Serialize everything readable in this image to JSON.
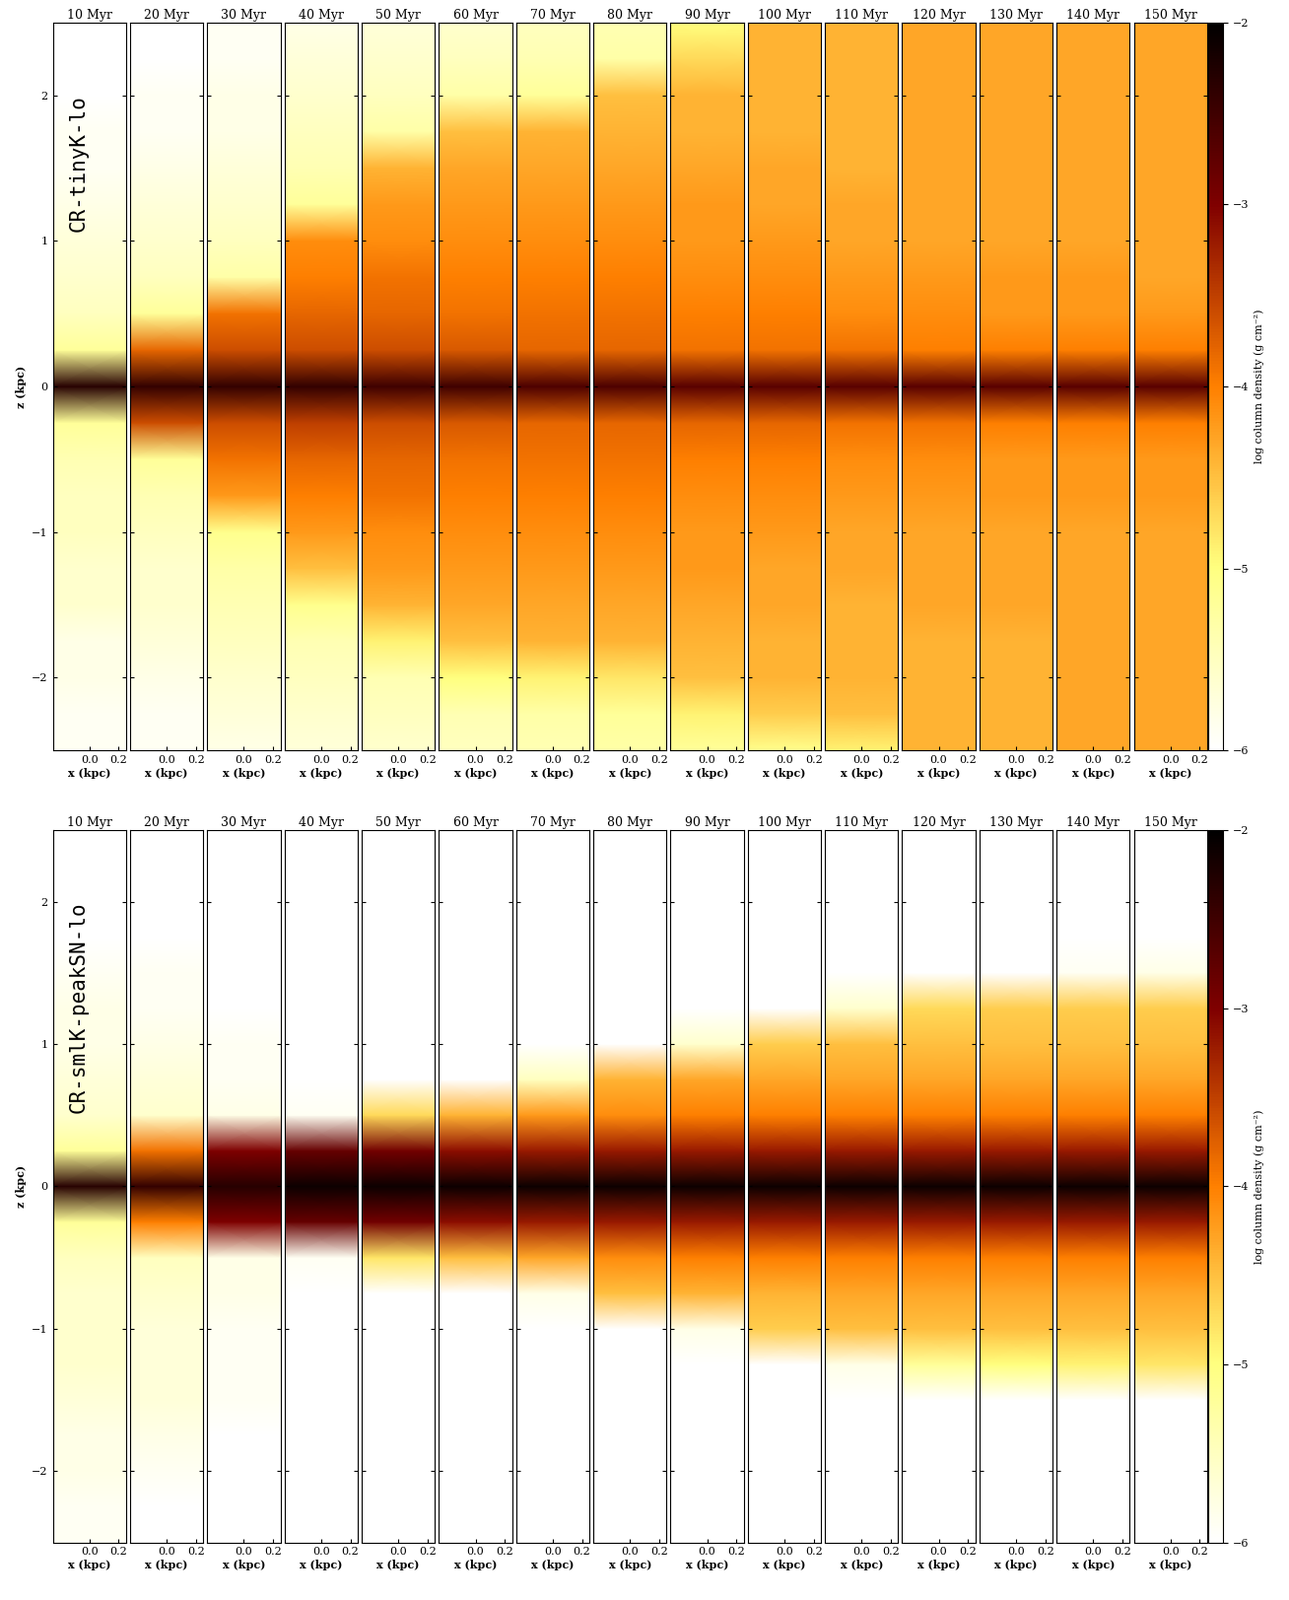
{
  "chart_data": [
    {
      "type": "heatmap",
      "title": "CR-tinyK-lo",
      "x_label": "x (kpc)",
      "y_label": "z (kpc)",
      "xlim": [
        -0.25,
        0.25
      ],
      "xticks": [
        0.0,
        0.2
      ],
      "ylim": [
        -2.5,
        2.5
      ],
      "yticks": [
        {
          "value": -2,
          "label": "−2"
        },
        {
          "value": -1,
          "label": "−1"
        },
        0,
        1,
        2
      ],
      "z": [
        -2.5,
        -2.25,
        -2.0,
        -1.75,
        -1.5,
        -1.25,
        -1.0,
        -0.75,
        -0.5,
        -0.25,
        0.0,
        0.25,
        0.5,
        0.75,
        1.0,
        1.25,
        1.5,
        1.75,
        2.0,
        2.25,
        2.5
      ],
      "colorbar": {
        "label": "log column density (g cm⁻²)",
        "range": [
          -6,
          -2
        ],
        "ticks": [
          {
            "value": -6,
            "label": "−6"
          },
          {
            "value": -5,
            "label": "−5"
          },
          {
            "value": -4,
            "label": "−4"
          },
          {
            "value": -3,
            "label": "−3"
          },
          {
            "value": -2,
            "label": "−2"
          }
        ]
      },
      "panels": [
        {
          "title": "10 Myr",
          "values": [
            -5.9,
            -5.9,
            -5.8,
            -5.8,
            -5.6,
            -5.6,
            -5.5,
            -5.5,
            -5.4,
            -5.2,
            -2.3,
            -5.2,
            -5.5,
            -5.6,
            -5.7,
            -5.8,
            -5.9,
            -5.9,
            -6.0,
            -6.0,
            -6.0
          ]
        },
        {
          "title": "20 Myr",
          "values": [
            -5.9,
            -5.9,
            -5.8,
            -5.7,
            -5.6,
            -5.6,
            -5.5,
            -5.4,
            -5.2,
            -3.6,
            -2.4,
            -3.8,
            -5.2,
            -5.5,
            -5.6,
            -5.7,
            -5.8,
            -5.9,
            -5.9,
            -6.0,
            -6.0
          ]
        },
        {
          "title": "30 Myr",
          "values": [
            -5.8,
            -5.7,
            -5.6,
            -5.5,
            -5.4,
            -5.3,
            -5.1,
            -4.2,
            -3.9,
            -3.6,
            -2.4,
            -3.6,
            -3.9,
            -5.3,
            -5.5,
            -5.6,
            -5.7,
            -5.8,
            -5.8,
            -5.9,
            -5.9
          ]
        },
        {
          "title": "40 Myr",
          "values": [
            -5.7,
            -5.6,
            -5.5,
            -5.4,
            -5.1,
            -4.5,
            -4.2,
            -4.0,
            -3.8,
            -3.5,
            -2.4,
            -3.6,
            -3.8,
            -4.0,
            -4.1,
            -5.2,
            -5.4,
            -5.5,
            -5.6,
            -5.7,
            -5.8
          ]
        },
        {
          "title": "50 Myr",
          "values": [
            -5.6,
            -5.5,
            -5.4,
            -4.9,
            -4.4,
            -4.2,
            -4.1,
            -3.9,
            -3.8,
            -3.6,
            -2.5,
            -3.6,
            -3.8,
            -3.9,
            -4.1,
            -4.2,
            -4.4,
            -5.3,
            -5.5,
            -5.6,
            -5.7
          ]
        },
        {
          "title": "60 Myr",
          "values": [
            -5.5,
            -5.4,
            -5.0,
            -4.5,
            -4.3,
            -4.2,
            -4.1,
            -4.0,
            -3.9,
            -3.7,
            -2.5,
            -3.7,
            -3.9,
            -4.0,
            -4.1,
            -4.2,
            -4.3,
            -4.5,
            -5.3,
            -5.5,
            -5.6
          ]
        },
        {
          "title": "70 Myr",
          "values": [
            -5.4,
            -5.3,
            -4.9,
            -4.4,
            -4.3,
            -4.2,
            -4.1,
            -4.0,
            -3.9,
            -3.8,
            -2.6,
            -3.8,
            -3.9,
            -4.0,
            -4.1,
            -4.2,
            -4.3,
            -4.4,
            -5.2,
            -5.4,
            -5.5
          ]
        },
        {
          "title": "80 Myr",
          "values": [
            -5.3,
            -5.2,
            -4.8,
            -4.4,
            -4.3,
            -4.2,
            -4.1,
            -4.0,
            -3.9,
            -3.8,
            -2.6,
            -3.8,
            -3.9,
            -4.0,
            -4.1,
            -4.2,
            -4.3,
            -4.4,
            -4.5,
            -5.3,
            -5.4
          ]
        },
        {
          "title": "90 Myr",
          "values": [
            -5.2,
            -4.9,
            -4.5,
            -4.4,
            -4.3,
            -4.2,
            -4.2,
            -4.1,
            -4.0,
            -3.8,
            -2.7,
            -3.9,
            -4.0,
            -4.1,
            -4.2,
            -4.2,
            -4.3,
            -4.4,
            -4.4,
            -4.7,
            -5.0
          ]
        },
        {
          "title": "100 Myr",
          "values": [
            -5.1,
            -4.6,
            -4.4,
            -4.4,
            -4.3,
            -4.3,
            -4.2,
            -4.1,
            -4.0,
            -3.8,
            -2.7,
            -3.9,
            -4.0,
            -4.1,
            -4.2,
            -4.3,
            -4.3,
            -4.4,
            -4.4,
            -4.4,
            -4.4
          ]
        },
        {
          "title": "110 Myr",
          "values": [
            -4.9,
            -4.5,
            -4.4,
            -4.4,
            -4.4,
            -4.3,
            -4.3,
            -4.2,
            -4.1,
            -3.9,
            -2.7,
            -3.9,
            -4.1,
            -4.2,
            -4.3,
            -4.3,
            -4.4,
            -4.4,
            -4.4,
            -4.4,
            -4.4
          ]
        },
        {
          "title": "120 Myr",
          "values": [
            -4.4,
            -4.4,
            -4.4,
            -4.4,
            -4.3,
            -4.3,
            -4.3,
            -4.2,
            -4.1,
            -3.9,
            -2.7,
            -4.0,
            -4.1,
            -4.2,
            -4.3,
            -4.3,
            -4.3,
            -4.3,
            -4.3,
            -4.3,
            -4.3
          ]
        },
        {
          "title": "130 Myr",
          "values": [
            -4.4,
            -4.4,
            -4.4,
            -4.4,
            -4.3,
            -4.3,
            -4.3,
            -4.2,
            -4.2,
            -4.0,
            -2.7,
            -4.0,
            -4.2,
            -4.2,
            -4.3,
            -4.3,
            -4.3,
            -4.3,
            -4.3,
            -4.3,
            -4.3
          ]
        },
        {
          "title": "140 Myr",
          "values": [
            -4.3,
            -4.3,
            -4.3,
            -4.3,
            -4.3,
            -4.3,
            -4.3,
            -4.2,
            -4.2,
            -4.0,
            -2.7,
            -4.0,
            -4.2,
            -4.2,
            -4.3,
            -4.3,
            -4.3,
            -4.3,
            -4.3,
            -4.3,
            -4.3
          ]
        },
        {
          "title": "150 Myr",
          "values": [
            -4.3,
            -4.3,
            -4.3,
            -4.3,
            -4.3,
            -4.3,
            -4.3,
            -4.2,
            -4.2,
            -4.0,
            -2.7,
            -4.0,
            -4.2,
            -4.3,
            -4.3,
            -4.3,
            -4.3,
            -4.3,
            -4.3,
            -4.3,
            -4.3
          ]
        }
      ]
    },
    {
      "type": "heatmap",
      "title": "CR-smlK-peakSN-lo",
      "x_label": "x (kpc)",
      "y_label": "z (kpc)",
      "xlim": [
        -0.25,
        0.25
      ],
      "xticks": [
        0.0,
        0.2
      ],
      "ylim": [
        -2.5,
        2.5
      ],
      "yticks": [
        {
          "value": -2,
          "label": "−2"
        },
        {
          "value": -1,
          "label": "−1"
        },
        0,
        1,
        2
      ],
      "z": [
        -2.5,
        -2.25,
        -2.0,
        -1.75,
        -1.5,
        -1.25,
        -1.0,
        -0.75,
        -0.5,
        -0.25,
        0.0,
        0.25,
        0.5,
        0.75,
        1.0,
        1.25,
        1.5,
        1.75,
        2.0,
        2.25,
        2.5
      ],
      "colorbar": {
        "label": "log column density (g cm⁻²)",
        "range": [
          -6,
          -2
        ],
        "ticks": [
          {
            "value": -6,
            "label": "−6"
          },
          {
            "value": -5,
            "label": "−5"
          },
          {
            "value": -4,
            "label": "−4"
          },
          {
            "value": -3,
            "label": "−3"
          },
          {
            "value": -2,
            "label": "−2"
          }
        ]
      },
      "panels": [
        {
          "title": "10 Myr",
          "values": [
            -5.9,
            -5.9,
            -5.8,
            -5.8,
            -5.7,
            -5.6,
            -5.6,
            -5.6,
            -5.5,
            -5.2,
            -2.3,
            -5.2,
            -5.6,
            -5.7,
            -5.8,
            -5.8,
            -5.9,
            -6.0,
            -6.0,
            -6.0,
            -6.0
          ]
        },
        {
          "title": "20 Myr",
          "values": [
            -6.0,
            -6.0,
            -5.9,
            -5.8,
            -5.7,
            -5.7,
            -5.7,
            -5.6,
            -5.5,
            -4.0,
            -2.4,
            -3.9,
            -5.6,
            -5.7,
            -5.8,
            -5.9,
            -5.9,
            -6.0,
            -6.0,
            -6.0,
            -6.0
          ]
        },
        {
          "title": "30 Myr",
          "values": [
            -6.0,
            -6.0,
            -6.0,
            -6.0,
            -5.9,
            -5.9,
            -5.9,
            -5.8,
            -5.8,
            -3.0,
            -2.3,
            -3.0,
            -5.8,
            -5.9,
            -5.9,
            -6.0,
            -6.0,
            -6.0,
            -6.0,
            -6.0,
            -6.0
          ]
        },
        {
          "title": "40 Myr",
          "values": [
            -6.0,
            -6.0,
            -6.0,
            -6.0,
            -6.0,
            -6.0,
            -6.0,
            -6.0,
            -5.9,
            -2.8,
            -2.1,
            -2.8,
            -5.9,
            -6.0,
            -6.0,
            -6.0,
            -6.0,
            -6.0,
            -6.0,
            -6.0,
            -6.0
          ]
        },
        {
          "title": "50 Myr",
          "values": [
            -6.0,
            -6.0,
            -6.0,
            -6.0,
            -6.0,
            -6.0,
            -6.0,
            -6.0,
            -4.8,
            -2.9,
            -2.1,
            -2.9,
            -4.7,
            -6.0,
            -6.0,
            -6.0,
            -6.0,
            -6.0,
            -6.0,
            -6.0,
            -6.0
          ]
        },
        {
          "title": "60 Myr",
          "values": [
            -6.0,
            -6.0,
            -6.0,
            -6.0,
            -6.0,
            -6.0,
            -6.0,
            -6.0,
            -4.5,
            -3.1,
            -2.1,
            -3.1,
            -4.4,
            -6.0,
            -6.0,
            -6.0,
            -6.0,
            -6.0,
            -6.0,
            -6.0,
            -6.0
          ]
        },
        {
          "title": "70 Myr",
          "values": [
            -6.0,
            -6.0,
            -6.0,
            -6.0,
            -6.0,
            -6.0,
            -6.0,
            -5.8,
            -4.3,
            -3.2,
            -2.1,
            -3.2,
            -4.2,
            -5.5,
            -6.0,
            -6.0,
            -6.0,
            -6.0,
            -6.0,
            -6.0,
            -6.0
          ]
        },
        {
          "title": "80 Myr",
          "values": [
            -6.0,
            -6.0,
            -6.0,
            -6.0,
            -6.0,
            -6.0,
            -6.0,
            -4.5,
            -4.1,
            -3.2,
            -2.1,
            -3.2,
            -4.1,
            -4.4,
            -6.0,
            -6.0,
            -6.0,
            -6.0,
            -6.0,
            -6.0,
            -6.0
          ]
        },
        {
          "title": "90 Myr",
          "values": [
            -6.0,
            -6.0,
            -6.0,
            -6.0,
            -6.0,
            -6.0,
            -5.8,
            -4.4,
            -4.0,
            -3.2,
            -2.1,
            -3.2,
            -4.0,
            -4.3,
            -5.6,
            -6.0,
            -6.0,
            -6.0,
            -6.0,
            -6.0,
            -6.0
          ]
        },
        {
          "title": "100 Myr",
          "values": [
            -6.0,
            -6.0,
            -6.0,
            -6.0,
            -6.0,
            -6.0,
            -4.6,
            -4.4,
            -4.0,
            -3.2,
            -2.1,
            -3.2,
            -4.0,
            -4.3,
            -4.6,
            -6.0,
            -6.0,
            -6.0,
            -6.0,
            -6.0,
            -6.0
          ]
        },
        {
          "title": "110 Myr",
          "values": [
            -6.0,
            -6.0,
            -6.0,
            -6.0,
            -6.0,
            -5.8,
            -4.5,
            -4.3,
            -4.0,
            -3.2,
            -2.1,
            -3.2,
            -4.0,
            -4.3,
            -4.5,
            -5.6,
            -6.0,
            -6.0,
            -6.0,
            -6.0,
            -6.0
          ]
        },
        {
          "title": "120 Myr",
          "values": [
            -6.0,
            -6.0,
            -6.0,
            -6.0,
            -6.0,
            -5.2,
            -4.5,
            -4.3,
            -4.0,
            -3.2,
            -2.1,
            -3.2,
            -4.0,
            -4.3,
            -4.5,
            -4.7,
            -6.0,
            -6.0,
            -6.0,
            -6.0,
            -6.0
          ]
        },
        {
          "title": "130 Myr",
          "values": [
            -6.0,
            -6.0,
            -6.0,
            -6.0,
            -6.0,
            -5.0,
            -4.5,
            -4.3,
            -4.0,
            -3.2,
            -2.1,
            -3.2,
            -4.0,
            -4.3,
            -4.5,
            -4.6,
            -6.0,
            -6.0,
            -6.0,
            -6.0,
            -6.0
          ]
        },
        {
          "title": "140 Myr",
          "values": [
            -6.0,
            -6.0,
            -6.0,
            -6.0,
            -6.0,
            -4.9,
            -4.5,
            -4.3,
            -4.0,
            -3.2,
            -2.1,
            -3.2,
            -4.0,
            -4.3,
            -4.5,
            -4.6,
            -5.9,
            -6.0,
            -6.0,
            -6.0,
            -6.0
          ]
        },
        {
          "title": "150 Myr",
          "values": [
            -6.0,
            -6.0,
            -6.0,
            -6.0,
            -6.0,
            -4.8,
            -4.5,
            -4.3,
            -4.0,
            -3.2,
            -2.1,
            -3.2,
            -4.0,
            -4.3,
            -4.5,
            -4.6,
            -5.8,
            -6.0,
            -6.0,
            -6.0,
            -6.0
          ]
        }
      ]
    }
  ]
}
